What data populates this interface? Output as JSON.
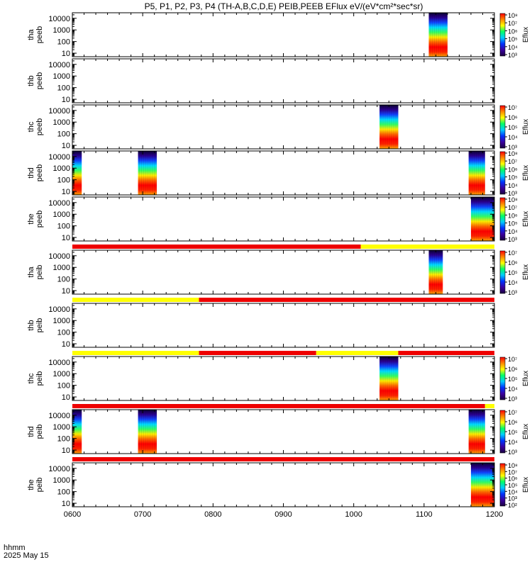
{
  "title": "P5, P1, P2, P3, P4 (TH-A,B,C,D,E) PEIB,PEEB EFlux eV/(eV*cm²*sec*sr)",
  "time_axis": {
    "ticks": [
      "0600",
      "0700",
      "0800",
      "0900",
      "1000",
      "1100",
      "1200"
    ],
    "label_line1": "hhmm",
    "label_line2": "2025 May 15",
    "range_hours": [
      6,
      12
    ]
  },
  "energy_ticks": [
    "10",
    "100",
    "1000",
    "10000"
  ],
  "colorbar_label": "Eflux",
  "colors": {
    "flag_red": "#ee0000",
    "flag_yellow": "#ffff00",
    "colormap": [
      "#1a0040",
      "#3a00a0",
      "#0033ff",
      "#00ccff",
      "#00ff66",
      "#ffff00",
      "#ff8800",
      "#ff0000"
    ]
  },
  "chart_data": [
    {
      "type": "heatmap",
      "probe_label": "tha",
      "inst_label": "peeb",
      "ylim": [
        5,
        30000
      ],
      "ylog": true,
      "cbar_ticks": [
        "10⁸",
        "10⁷",
        "10⁶",
        "10⁵",
        "10⁴",
        "10³"
      ],
      "cbar_range": [
        1000.0,
        100000000.0
      ],
      "segments": [
        {
          "start": "11:04",
          "end": "11:20"
        }
      ]
    },
    {
      "type": "heatmap",
      "probe_label": "thb",
      "inst_label": "peeb",
      "ylim": [
        5,
        30000
      ],
      "ylog": true,
      "cbar_ticks": [],
      "segments": []
    },
    {
      "type": "heatmap",
      "probe_label": "thc",
      "inst_label": "peeb",
      "ylim": [
        5,
        30000
      ],
      "ylog": true,
      "cbar_ticks": [
        "10⁷",
        "10⁶",
        "10⁵",
        "10⁴",
        "10³"
      ],
      "cbar_range": [
        1000.0,
        10000000.0
      ],
      "segments": [
        {
          "start": "10:22",
          "end": "10:38"
        }
      ]
    },
    {
      "type": "heatmap",
      "probe_label": "thd",
      "inst_label": "peeb",
      "ylim": [
        5,
        30000
      ],
      "ylog": true,
      "cbar_ticks": [
        "10⁸",
        "10⁷",
        "10⁶",
        "10⁵",
        "10⁴",
        "10³"
      ],
      "cbar_range": [
        1000.0,
        100000000.0
      ],
      "segments": [
        {
          "start": "06:00",
          "end": "06:08"
        },
        {
          "start": "06:56",
          "end": "07:12"
        },
        {
          "start": "11:38",
          "end": "11:52"
        }
      ]
    },
    {
      "type": "heatmap",
      "probe_label": "the",
      "inst_label": "peeb",
      "ylim": [
        5,
        30000
      ],
      "ylog": true,
      "cbar_ticks": [
        "10⁸",
        "10⁷",
        "10⁶",
        "10⁵",
        "10⁴",
        "10³"
      ],
      "cbar_range": [
        1000.0,
        100000000.0
      ],
      "segments": [
        {
          "start": "11:40",
          "end": "12:00"
        }
      ]
    },
    {
      "type": "heatmap",
      "probe_label": "tha",
      "inst_label": "peib",
      "ylim": [
        5,
        30000
      ],
      "ylog": true,
      "cbar_ticks": [
        "10⁷",
        "10⁶",
        "10⁵",
        "10⁴",
        "10³"
      ],
      "cbar_range": [
        1000.0,
        10000000.0
      ],
      "flag_bar": [
        {
          "start": "06:00",
          "end": "10:06",
          "color": "red"
        },
        {
          "start": "10:06",
          "end": "12:00",
          "color": "yellow"
        }
      ],
      "segments": [
        {
          "start": "11:04",
          "end": "11:16"
        }
      ]
    },
    {
      "type": "heatmap",
      "probe_label": "thb",
      "inst_label": "peib",
      "ylim": [
        5,
        30000
      ],
      "ylog": true,
      "cbar_ticks": [],
      "flag_bar": [
        {
          "start": "06:00",
          "end": "07:48",
          "color": "yellow"
        },
        {
          "start": "07:48",
          "end": "12:00",
          "color": "red"
        }
      ],
      "segments": []
    },
    {
      "type": "heatmap",
      "probe_label": "thc",
      "inst_label": "peib",
      "ylim": [
        5,
        30000
      ],
      "ylog": true,
      "cbar_ticks": [
        "10⁷",
        "10⁶",
        "10⁵",
        "10⁴",
        "10³"
      ],
      "cbar_range": [
        1000.0,
        10000000.0
      ],
      "flag_bar": [
        {
          "start": "06:00",
          "end": "07:48",
          "color": "yellow"
        },
        {
          "start": "07:48",
          "end": "09:28",
          "color": "red"
        },
        {
          "start": "09:28",
          "end": "10:38",
          "color": "yellow"
        },
        {
          "start": "10:38",
          "end": "12:00",
          "color": "red"
        }
      ],
      "segments": [
        {
          "start": "10:22",
          "end": "10:38"
        }
      ]
    },
    {
      "type": "heatmap",
      "probe_label": "thd",
      "inst_label": "peib",
      "ylim": [
        5,
        30000
      ],
      "ylog": true,
      "cbar_ticks": [
        "10⁷",
        "10⁶",
        "10⁵",
        "10⁴",
        "10³"
      ],
      "cbar_range": [
        1000.0,
        10000000.0
      ],
      "flag_bar": [
        {
          "start": "06:00",
          "end": "11:52",
          "color": "red"
        },
        {
          "start": "11:52",
          "end": "12:00",
          "color": "yellow"
        }
      ],
      "segments": [
        {
          "start": "06:00",
          "end": "06:08"
        },
        {
          "start": "06:56",
          "end": "07:12"
        },
        {
          "start": "11:38",
          "end": "11:52"
        }
      ]
    },
    {
      "type": "heatmap",
      "probe_label": "the",
      "inst_label": "peib",
      "ylim": [
        5,
        30000
      ],
      "ylog": true,
      "cbar_ticks": [
        "10⁸",
        "10⁷",
        "10⁶",
        "10⁵",
        "10⁴",
        "10³",
        "10²"
      ],
      "cbar_range": [
        100.0,
        100000000.0
      ],
      "flag_bar": [
        {
          "start": "06:00",
          "end": "12:00",
          "color": "red"
        }
      ],
      "segments": [
        {
          "start": "11:40",
          "end": "12:00"
        }
      ]
    }
  ]
}
